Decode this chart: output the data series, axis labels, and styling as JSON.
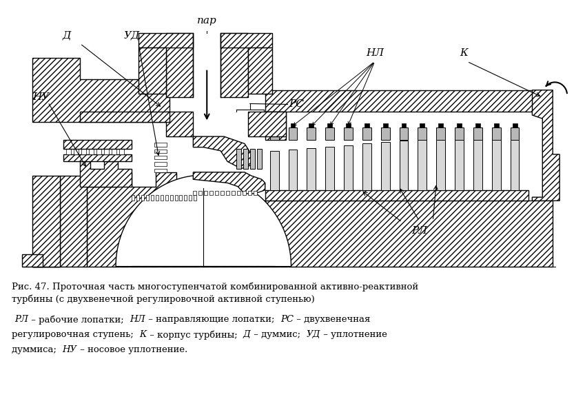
{
  "bg_color": "#ffffff",
  "fig_width": 8.49,
  "fig_height": 5.79,
  "dpi": 100,
  "caption_line1": "Рис. 47. Проточная часть многоступенчатой комбинированной активно-реактивной",
  "caption_line2": "турбины (с двухвенечной регулировочной активной ступенью)",
  "label_par": "пар",
  "label_RS": "РС",
  "label_NL": "НЛ",
  "label_K": "К",
  "label_D": "Д",
  "label_UD": "УД",
  "label_NU": "НУ",
  "label_RL": "РЛ"
}
